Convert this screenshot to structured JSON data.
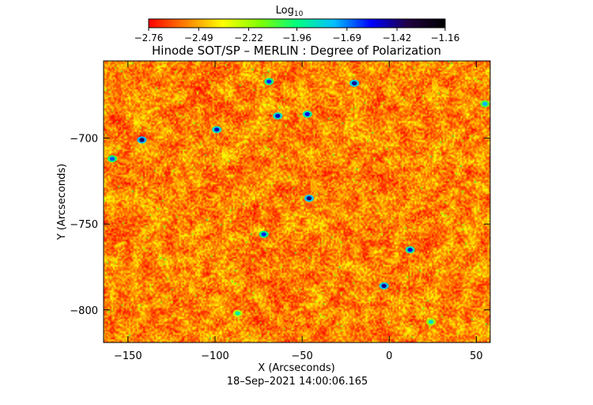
{
  "chart_data": {
    "type": "heatmap",
    "title": "Hinode SOT/SP – MERLIN : Degree of Polarization",
    "xlabel": "X (Arcseconds)",
    "ylabel": "Y (Arcseconds)",
    "footer": "18–Sep–2021 14:00:06.165",
    "xlim": [
      -164,
      58
    ],
    "ylim": [
      -819,
      -655
    ],
    "x_ticks": [
      -150,
      -100,
      -50,
      0,
      50
    ],
    "x_tick_labels": [
      "−150",
      "−100",
      "−50",
      "0",
      "50"
    ],
    "y_ticks": [
      -700,
      -750,
      -800
    ],
    "y_tick_labels": [
      "−700",
      "−750",
      "−800"
    ],
    "colorbar": {
      "label_base": "Log",
      "label_sub": "10",
      "min": -2.76,
      "max": -1.16,
      "ticks": [
        -2.76,
        -2.49,
        -2.22,
        -1.96,
        -1.69,
        -1.42,
        -1.16
      ],
      "tick_labels": [
        "−2.76",
        "−2.49",
        "−2.22",
        "−1.96",
        "−1.69",
        "−1.42",
        "−1.16"
      ],
      "colors": [
        "#ff0000",
        "#ff8000",
        "#ffff00",
        "#80ff00",
        "#00ff80",
        "#00c0ff",
        "#0000ff",
        "#200040",
        "#000000"
      ]
    },
    "background_level": -2.55,
    "features": [
      {
        "x": -142,
        "y": -701,
        "value": -1.4
      },
      {
        "x": -99,
        "y": -695,
        "value": -1.5
      },
      {
        "x": -46,
        "y": -735,
        "value": -1.42
      },
      {
        "x": -47,
        "y": -686,
        "value": -1.55
      },
      {
        "x": -64,
        "y": -687,
        "value": -1.5
      },
      {
        "x": -69,
        "y": -667,
        "value": -1.6
      },
      {
        "x": -20,
        "y": -668,
        "value": -1.45
      },
      {
        "x": -3,
        "y": -786,
        "value": -1.45
      },
      {
        "x": 12,
        "y": -765,
        "value": -1.55
      },
      {
        "x": -159,
        "y": -712,
        "value": -1.65
      },
      {
        "x": -72,
        "y": -756,
        "value": -1.6
      },
      {
        "x": 55,
        "y": -680,
        "value": -1.75
      },
      {
        "x": 24,
        "y": -807,
        "value": -1.85
      },
      {
        "x": -87,
        "y": -802,
        "value": -1.9
      }
    ]
  }
}
